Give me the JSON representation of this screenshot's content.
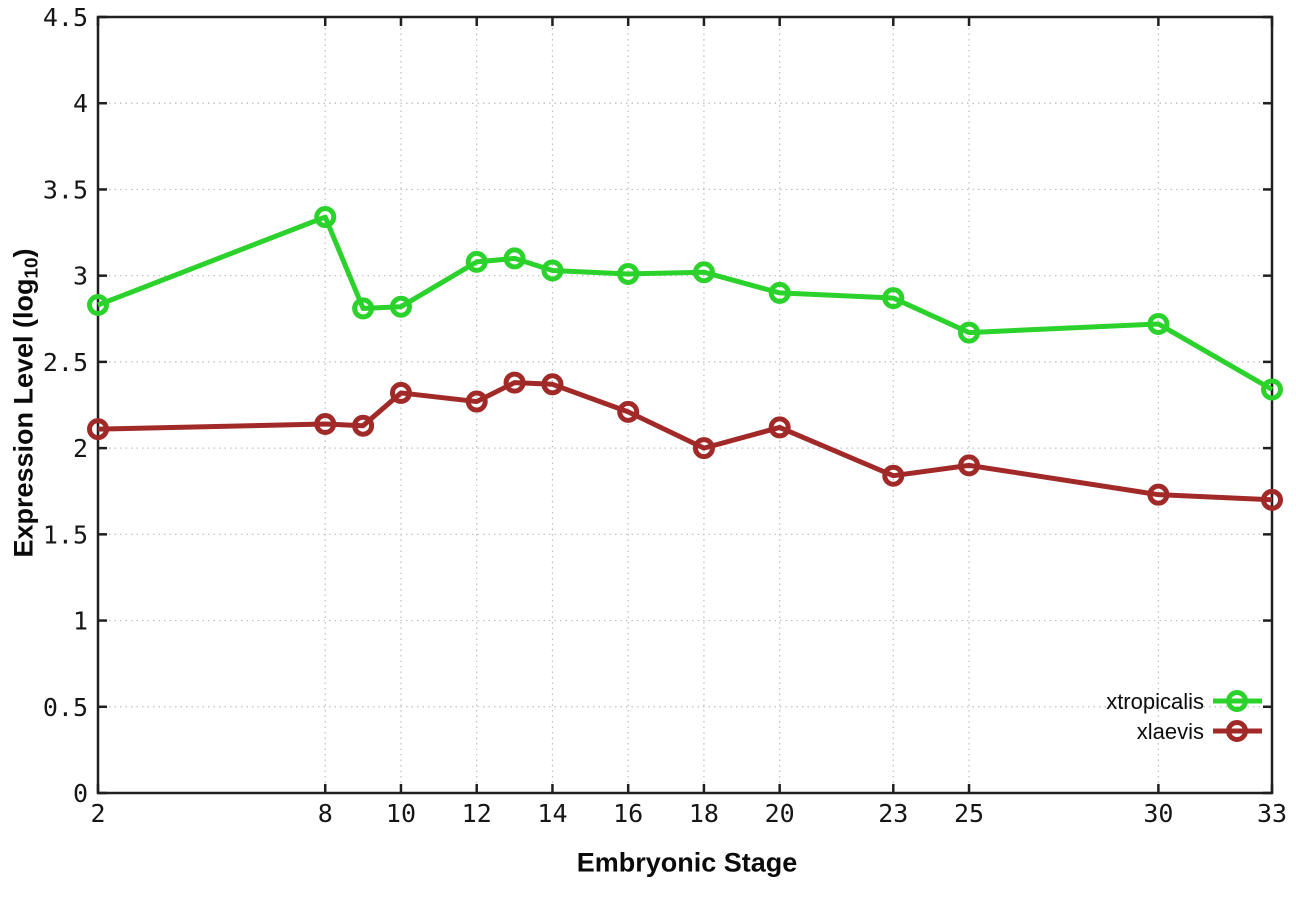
{
  "chart_data": {
    "type": "line",
    "x": [
      2,
      8,
      9,
      10,
      12,
      13,
      14,
      16,
      18,
      20,
      23,
      25,
      30,
      33
    ],
    "series": [
      {
        "name": "xtropicalis",
        "color": "#2bd22b",
        "values": [
          2.83,
          3.34,
          2.81,
          2.82,
          3.08,
          3.1,
          3.03,
          3.01,
          3.02,
          2.9,
          2.87,
          2.67,
          2.72,
          2.34
        ]
      },
      {
        "name": "xlaevis",
        "color": "#a12a28",
        "values": [
          2.11,
          2.14,
          2.13,
          2.32,
          2.27,
          2.38,
          2.37,
          2.21,
          2.0,
          2.12,
          1.84,
          1.9,
          1.73,
          1.7
        ]
      }
    ],
    "title": "",
    "xlabel": "Embryonic Stage",
    "ylabel_prefix": "Expression Level (log",
    "ylabel_sub": "10",
    "ylabel_suffix": ")",
    "xlim": [
      2,
      33
    ],
    "ylim": [
      0,
      4.5
    ],
    "xticks": [
      2,
      8,
      10,
      12,
      14,
      16,
      18,
      20,
      23,
      25,
      30,
      33
    ],
    "xtick_labels": [
      "2",
      "8",
      "10",
      "12",
      "14",
      "16",
      "18",
      "20",
      "23",
      "25",
      "30",
      "33"
    ],
    "yticks": [
      0,
      0.5,
      1,
      1.5,
      2,
      2.5,
      3,
      3.5,
      4,
      4.5
    ],
    "ytick_labels": [
      "0",
      "0.5",
      "1",
      "1.5",
      "2",
      "2.5",
      "3",
      "3.5",
      "4",
      "4.5"
    ],
    "grid": true,
    "legend_position": "bottom-right",
    "legend_entries": [
      "xtropicalis",
      "xlaevis"
    ]
  },
  "style_colors": {
    "background": "#ffffff",
    "border": "#1f1f1f",
    "grid": "#bdbdbd",
    "tick_text": "#161616",
    "xtropicalis": "#2bd22b",
    "xlaevis": "#a12a28"
  }
}
